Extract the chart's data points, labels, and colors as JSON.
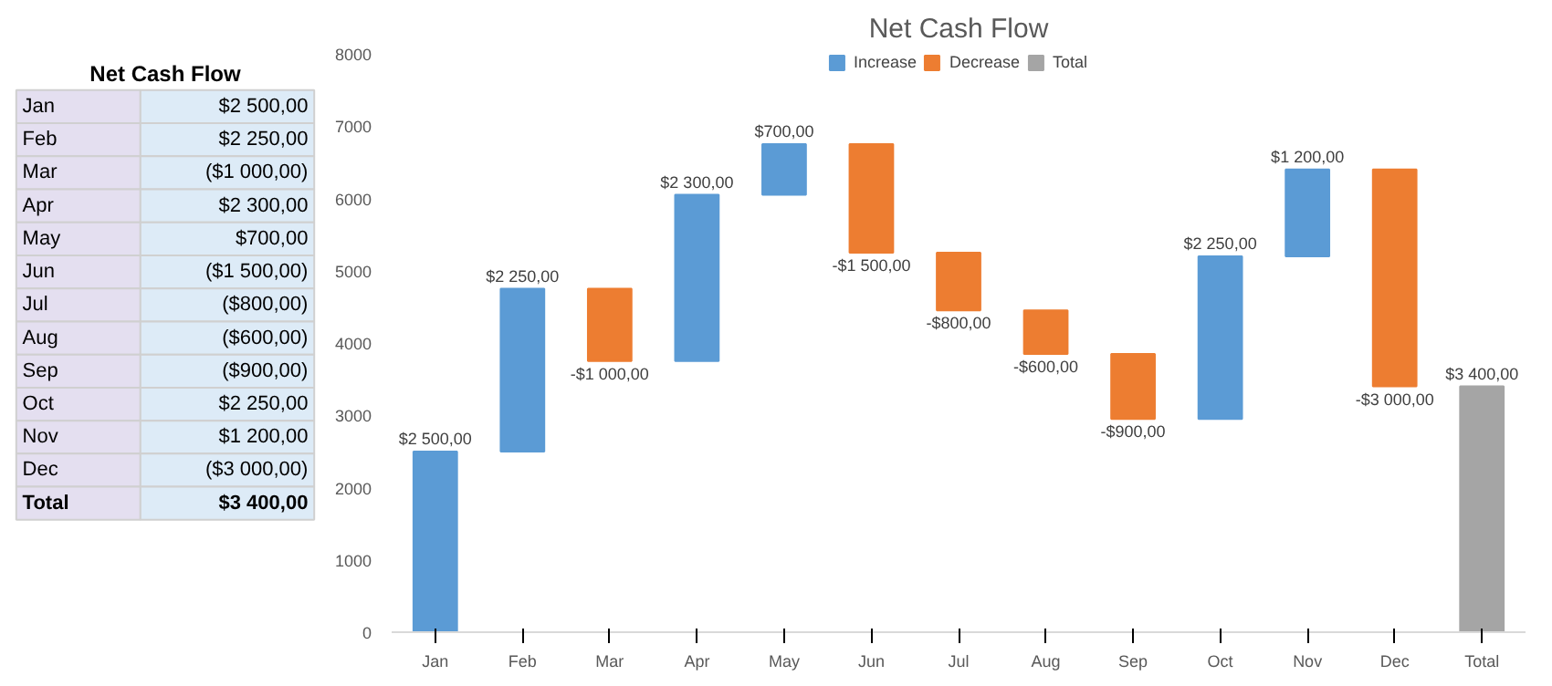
{
  "chart_data": [
    {
      "type": "other",
      "title": "Net Cash Flow",
      "categories": [
        "Jan",
        "Feb",
        "Mar",
        "Apr",
        "May",
        "Jun",
        "Jul",
        "Aug",
        "Sep",
        "Oct",
        "Nov",
        "Dec",
        "Total"
      ],
      "value_labels": [
        "$2 500,00",
        "$2 250,00",
        "($1 000,00)",
        "$2 300,00",
        "$700,00",
        "($1 500,00)",
        "($800,00)",
        "($600,00)",
        "($900,00)",
        "$2 250,00",
        "$1 200,00",
        "($3 000,00)",
        "$3 400,00"
      ]
    },
    {
      "type": "bar",
      "title": "Net Cash Flow",
      "categories": [
        "Jan",
        "Feb",
        "Mar",
        "Apr",
        "May",
        "Jun",
        "Jul",
        "Aug",
        "Sep",
        "Oct",
        "Nov",
        "Dec",
        "Total"
      ],
      "series": [
        {
          "name": "Increase",
          "color": "#5b9bd5",
          "base": [
            0,
            2500,
            null,
            3750,
            6050,
            null,
            null,
            null,
            null,
            2950,
            5200,
            null,
            null
          ],
          "values": [
            2500,
            2250,
            null,
            2300,
            700,
            null,
            null,
            null,
            null,
            2250,
            1200,
            null,
            null
          ],
          "value_labels": [
            "$2 500,00",
            "$2 250,00",
            null,
            "$2 300,00",
            "$700,00",
            null,
            null,
            null,
            null,
            "$2 250,00",
            "$1 200,00",
            null,
            null
          ]
        },
        {
          "name": "Decrease",
          "color": "#ed7d31",
          "base": [
            null,
            null,
            4750,
            null,
            null,
            6750,
            5250,
            4450,
            3850,
            null,
            null,
            6400,
            null
          ],
          "values": [
            null,
            null,
            -1000,
            null,
            null,
            -1500,
            -800,
            -600,
            -900,
            null,
            null,
            -3000,
            null
          ],
          "value_labels": [
            null,
            null,
            "-$1 000,00",
            null,
            null,
            "-$1 500,00",
            "-$800,00",
            "-$600,00",
            "-$900,00",
            null,
            null,
            "-$3 000,00",
            null
          ]
        },
        {
          "name": "Total",
          "color": "#a5a5a5",
          "base": [
            null,
            null,
            null,
            null,
            null,
            null,
            null,
            null,
            null,
            null,
            null,
            null,
            0
          ],
          "values": [
            null,
            null,
            null,
            null,
            null,
            null,
            null,
            null,
            null,
            null,
            null,
            null,
            3400
          ],
          "value_labels": [
            null,
            null,
            null,
            null,
            null,
            null,
            null,
            null,
            null,
            null,
            null,
            null,
            "$3 400,00"
          ]
        }
      ],
      "ylim": [
        0,
        8000
      ],
      "yticks": [
        0,
        1000,
        2000,
        3000,
        4000,
        5000,
        6000,
        7000,
        8000
      ],
      "grid": false,
      "legend": "top"
    }
  ]
}
